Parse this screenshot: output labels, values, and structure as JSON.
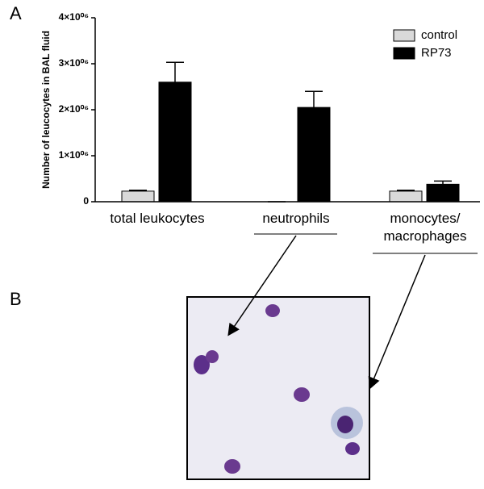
{
  "chart_data": {
    "type": "bar",
    "panels": [
      "A",
      "B"
    ],
    "y_label": "Number of leucocytes in BAL fluid",
    "categories": [
      "total leukocytes",
      "neutrophils",
      "monocytes/\nmacrophages"
    ],
    "series": [
      {
        "name": "control",
        "color": "#d9d9d9",
        "values": [
          230000,
          0,
          230000
        ],
        "errors": [
          20000,
          0,
          20000
        ]
      },
      {
        "name": "RP73",
        "color": "#000000",
        "values": [
          2600000,
          2050000,
          380000
        ],
        "errors": [
          430000,
          350000,
          70000
        ]
      }
    ],
    "ylim": [
      0,
      4000000
    ],
    "yticks": [
      0,
      {
        "value": 1000000,
        "label": "1×10⁰⁶"
      },
      {
        "value": 2000000,
        "label": "2×10⁰⁶"
      },
      {
        "value": 3000000,
        "label": "3×10⁰⁶"
      },
      {
        "value": 4000000,
        "label": "4×10⁰⁶"
      }
    ],
    "legend": "top-right"
  }
}
